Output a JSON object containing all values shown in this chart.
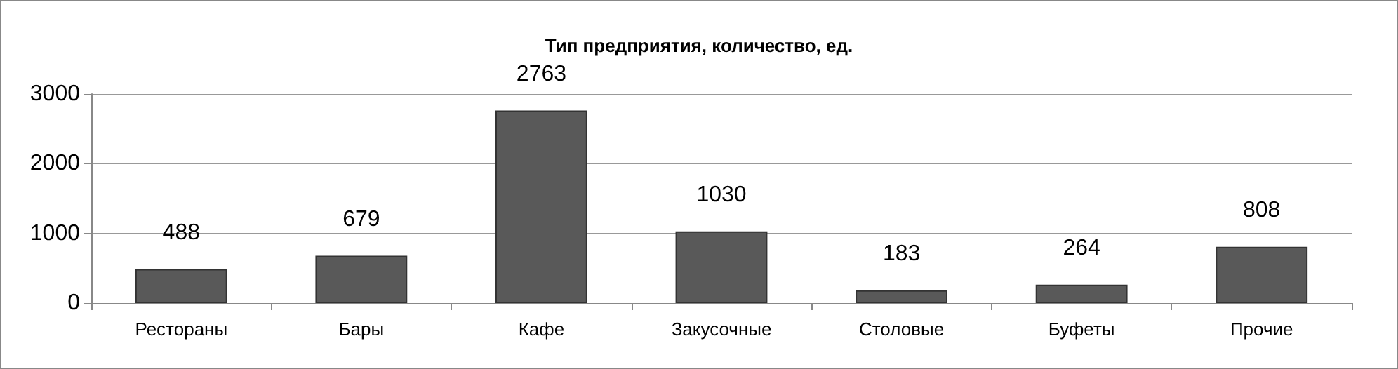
{
  "chart_data": {
    "type": "bar",
    "title": "Тип предприятия, количество, ед.",
    "categories": [
      "Рестораны",
      "Бары",
      "Кафе",
      "Закусочные",
      "Столовые",
      "Буфеты",
      "Прочие"
    ],
    "values": [
      488,
      679,
      2763,
      1030,
      183,
      264,
      808
    ],
    "color": "#595959",
    "ylim": [
      0,
      3000
    ],
    "yticks": [
      0,
      1000,
      2000,
      3000
    ],
    "grid": "y",
    "data_labels": true
  }
}
